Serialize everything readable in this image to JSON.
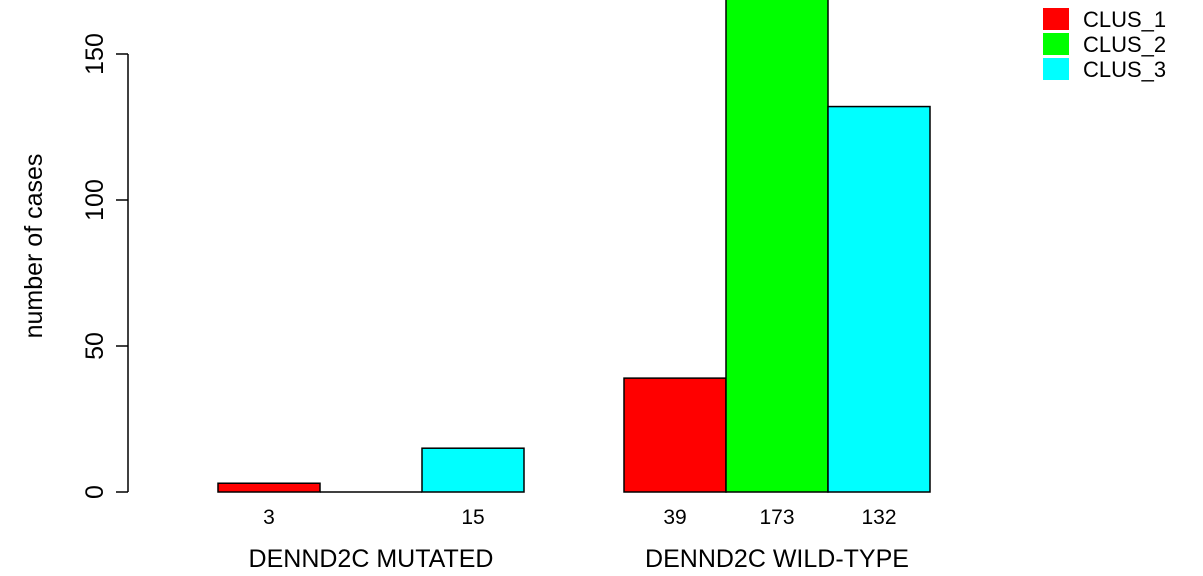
{
  "chart_data": {
    "type": "bar",
    "title": "",
    "xlabel": "",
    "ylabel": "number of cases",
    "ylim": [
      0,
      173
    ],
    "yticks": [
      0,
      50,
      100,
      150
    ],
    "groups": [
      "DENND2C MUTATED",
      "DENND2C WILD-TYPE"
    ],
    "series": [
      {
        "name": "CLUS_1",
        "color": "#ff0000",
        "values": [
          3,
          39
        ]
      },
      {
        "name": "CLUS_2",
        "color": "#00ff00",
        "values": [
          0,
          173
        ]
      },
      {
        "name": "CLUS_3",
        "color": "#00ffff",
        "values": [
          15,
          132
        ]
      }
    ],
    "bar_labels": [
      [
        "3",
        "",
        "15"
      ],
      [
        "39",
        "173",
        "132"
      ]
    ],
    "legend_position": "top-right",
    "grid": false
  }
}
